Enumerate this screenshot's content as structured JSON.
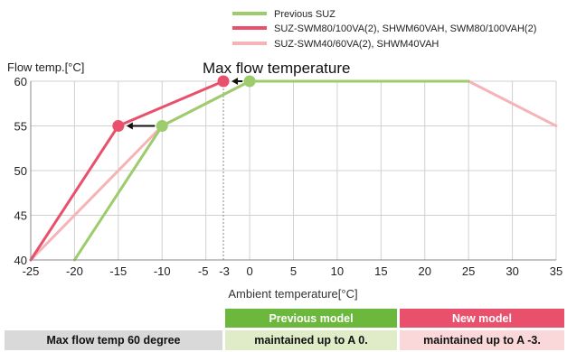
{
  "chart_data": {
    "type": "line",
    "ylabel": "Flow temp.[°C]",
    "xlabel": "Ambient temperature[°C]",
    "annotation": "Max flow temperature",
    "xlim": [
      -25,
      35
    ],
    "ylim": [
      40,
      60
    ],
    "xticks": [
      "-25",
      "-20",
      "-15",
      "-10",
      "-5",
      "-3",
      "0",
      "5",
      "10",
      "15",
      "20",
      "25",
      "30",
      "35"
    ],
    "yticks": [
      "40",
      "45",
      "50",
      "55",
      "60"
    ],
    "grid": true,
    "legend_position": "top",
    "series": [
      {
        "name": "Previous SUZ",
        "color": "#9ccc6c",
        "points": [
          [
            -20,
            40
          ],
          [
            -10,
            55
          ],
          [
            0,
            60
          ],
          [
            25,
            60
          ]
        ],
        "markers": [
          [
            -10,
            55
          ],
          [
            0,
            60
          ]
        ]
      },
      {
        "name": "SUZ-SWM80/100VA(2), SHWM60VAH, SWM80/100VAH(2)",
        "color": "#e8506c",
        "points": [
          [
            -25,
            40
          ],
          [
            -15,
            55
          ],
          [
            -3,
            60
          ]
        ],
        "markers": [
          [
            -15,
            55
          ],
          [
            -3,
            60
          ]
        ]
      },
      {
        "name": "SUZ-SWM40/60VA(2), SHWM40VAH",
        "color": "#f4b4b8",
        "points": [
          [
            -25,
            40
          ],
          [
            -10,
            55
          ],
          [
            0,
            60
          ],
          [
            25,
            60
          ],
          [
            35,
            55
          ]
        ],
        "markers": []
      }
    ],
    "arrows": [
      {
        "from": [
          -10,
          55
        ],
        "to": [
          -15,
          55
        ]
      },
      {
        "from": [
          0,
          60
        ],
        "to": [
          -3,
          60
        ]
      }
    ],
    "reference_line_x": -3
  },
  "table": {
    "header_previous": "Previous model",
    "header_new": "New model",
    "row_label": "Max flow temp 60 degree",
    "row_previous": "maintained up to A 0.",
    "row_new": "maintained up to A -3.",
    "colors": {
      "header_previous_bg": "#6cb83c",
      "header_new_bg": "#e8506c",
      "row_label_bg": "#d9d9d9",
      "row_previous_bg": "#e0ecc8",
      "row_new_bg": "#fad8da"
    }
  }
}
